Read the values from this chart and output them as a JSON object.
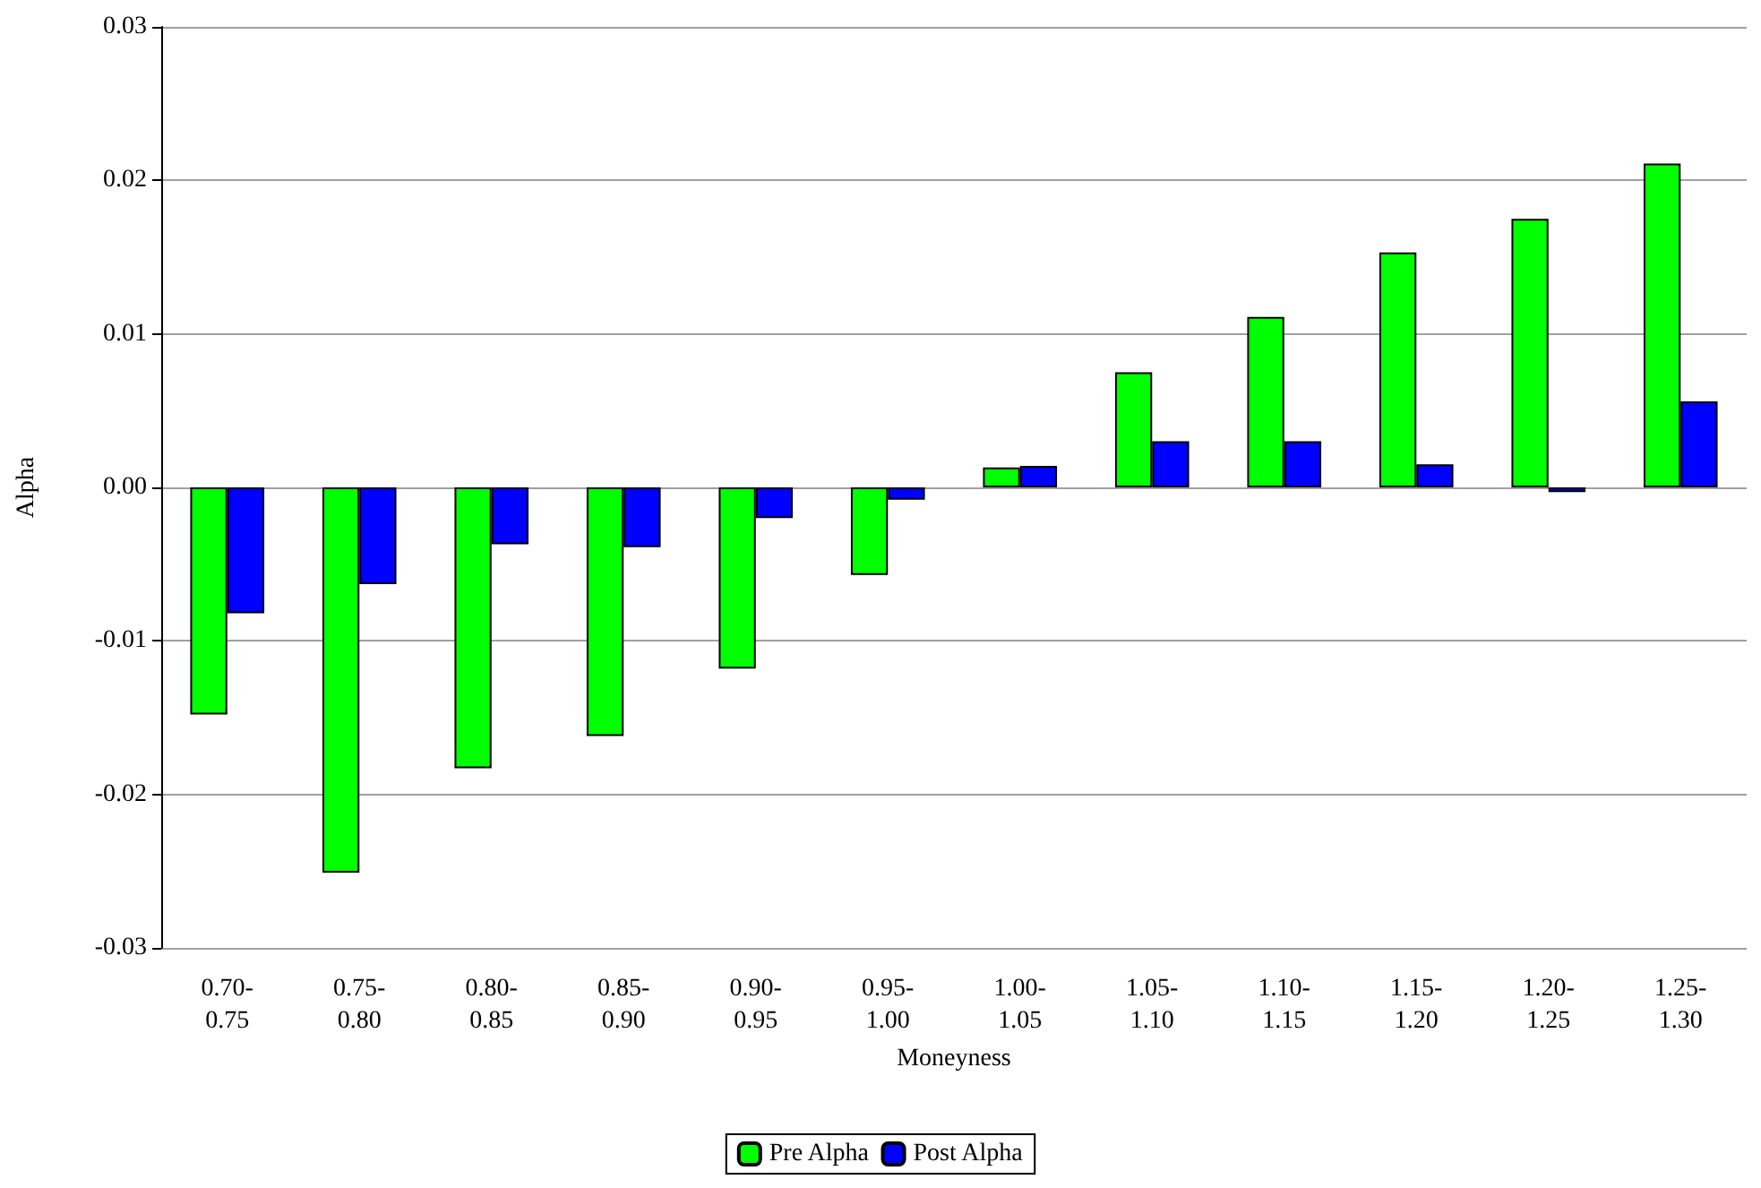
{
  "chart_data": {
    "type": "bar",
    "xlabel": "Moneyness",
    "ylabel": "Alpha",
    "categories": [
      "0.70-\n0.75",
      "0.75-\n0.80",
      "0.80-\n0.85",
      "0.85-\n0.90",
      "0.90-\n0.95",
      "0.95-\n1.00",
      "1.00-\n1.05",
      "1.05-\n1.10",
      "1.10-\n1.15",
      "1.15-\n1.20",
      "1.20-\n1.25",
      "1.25-\n1.30"
    ],
    "series": [
      {
        "name": "Pre Alpha",
        "color": "#00ff00",
        "values": [
          -0.0148,
          -0.0251,
          -0.0183,
          -0.0162,
          -0.0118,
          -0.0057,
          0.0013,
          0.0075,
          0.0111,
          0.0153,
          0.0175,
          0.0211
        ]
      },
      {
        "name": "Post Alpha",
        "color": "#0000ff",
        "values": [
          -0.0082,
          -0.0063,
          -0.0037,
          -0.0039,
          -0.002,
          -0.0008,
          0.0014,
          0.003,
          0.003,
          0.0015,
          -0.0003,
          0.0056
        ]
      }
    ],
    "ylim": [
      -0.03,
      0.03
    ],
    "yticks": [
      {
        "value": -0.03,
        "label": "-0.03"
      },
      {
        "value": -0.02,
        "label": "-0.02"
      },
      {
        "value": -0.01,
        "label": "-0.01"
      },
      {
        "value": 0,
        "label": "0.00"
      },
      {
        "value": 0.01,
        "label": "0.01"
      },
      {
        "value": 0.02,
        "label": "0.02"
      },
      {
        "value": 0.03,
        "label": "0.03"
      }
    ],
    "grid": "y",
    "legend": "bottom"
  }
}
